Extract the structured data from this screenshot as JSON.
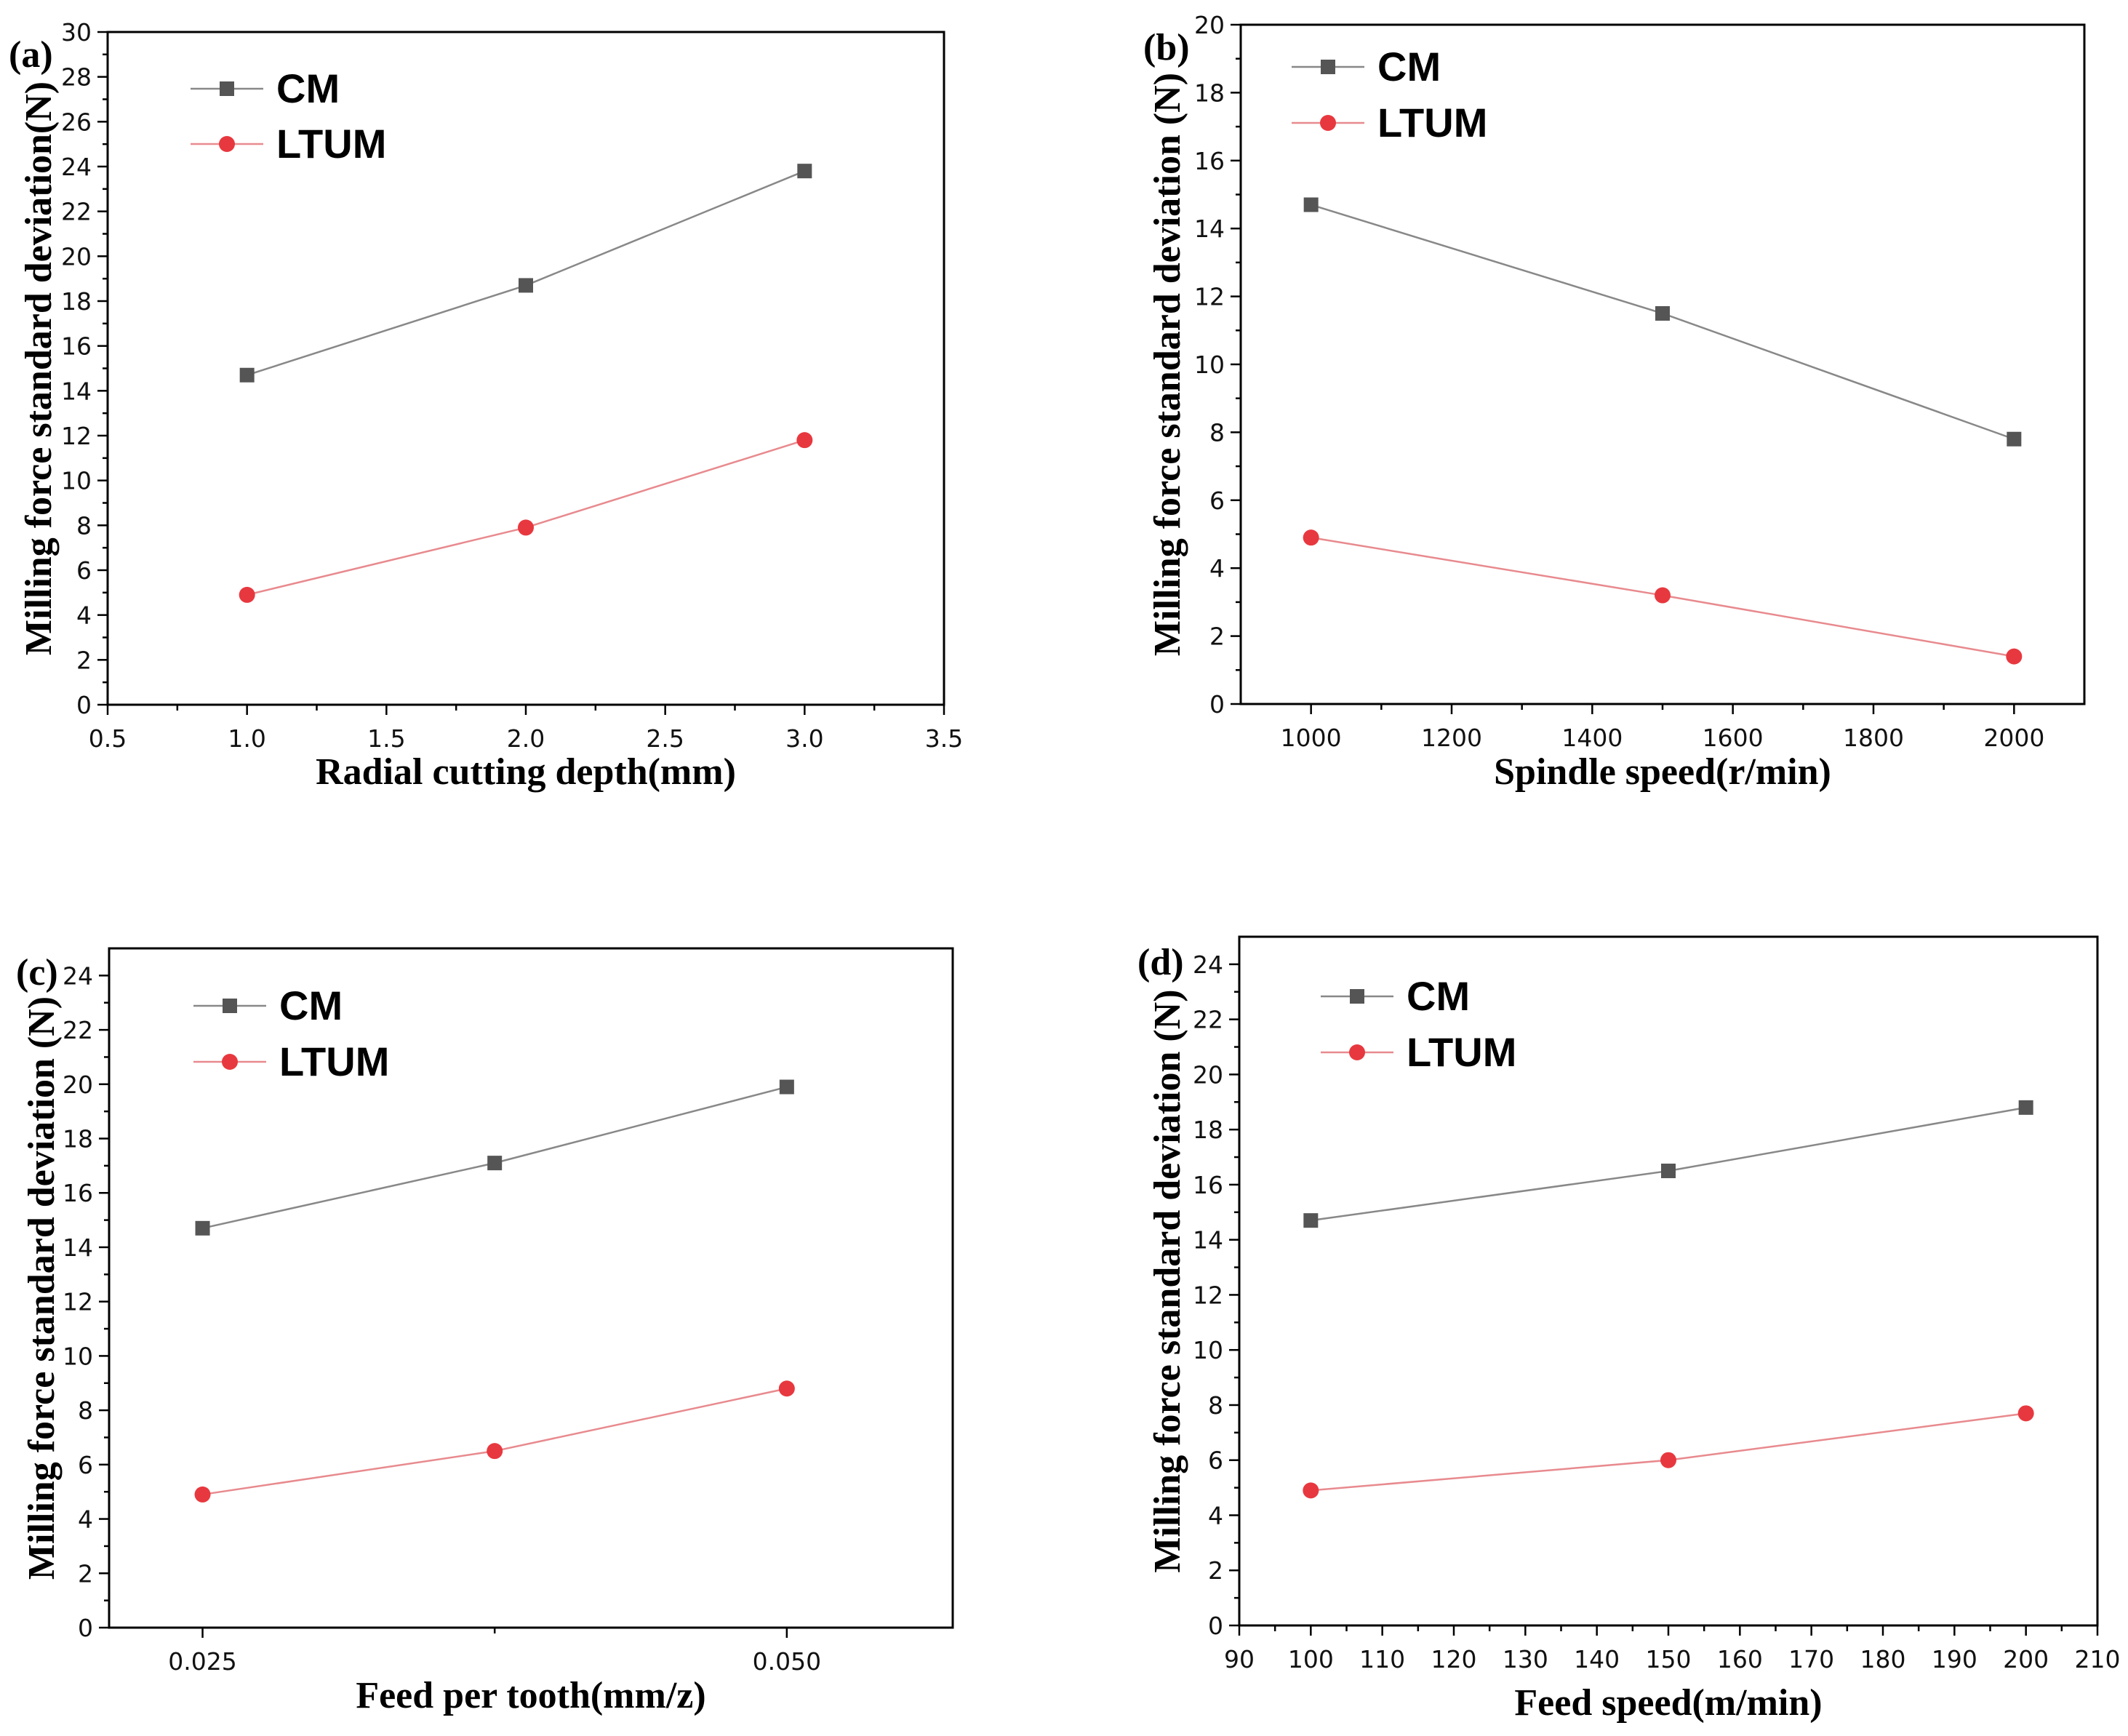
{
  "colors": {
    "cm": "#555555",
    "cm_line": "#888888",
    "ltum": "#e8383f",
    "ltum_line": "#e88a8e"
  },
  "chart_data": [
    {
      "type": "line",
      "panel_label": "(a)",
      "xlabel": "Radial cutting depth(mm)",
      "ylabel": "Milling force standard deviation(N)",
      "xlim": [
        0.5,
        3.5
      ],
      "ylim": [
        0,
        30
      ],
      "xticks": [
        0.5,
        1.0,
        1.5,
        2.0,
        2.5,
        3.0,
        3.5
      ],
      "xtick_labels": [
        "0.5",
        "1.0",
        "1.5",
        "2.0",
        "2.5",
        "3.0",
        "3.5"
      ],
      "yticks": [
        0,
        2,
        4,
        6,
        8,
        10,
        12,
        14,
        16,
        18,
        20,
        22,
        24,
        26,
        28,
        30
      ],
      "ytick_labels": [
        "0",
        "2",
        "4",
        "6",
        "8",
        "10",
        "12",
        "14",
        "16",
        "18",
        "20",
        "22",
        "24",
        "26",
        "28",
        "30"
      ],
      "x": [
        1.0,
        2.0,
        3.0
      ],
      "series": [
        {
          "name": "CM",
          "values": [
            14.7,
            18.7,
            23.8
          ]
        },
        {
          "name": "LTUM",
          "values": [
            4.9,
            7.9,
            11.8
          ]
        }
      ]
    },
    {
      "type": "line",
      "panel_label": "(b)",
      "xlabel": "Spindle speed(r/min)",
      "ylabel": "Milling force standard deviation (N)",
      "xlim": [
        900,
        2100
      ],
      "ylim": [
        0,
        20
      ],
      "xticks": [
        1000,
        1200,
        1400,
        1600,
        1800,
        2000
      ],
      "xtick_labels": [
        "1000",
        "1200",
        "1400",
        "1600",
        "1800",
        "2000"
      ],
      "yticks": [
        0,
        2,
        4,
        6,
        8,
        10,
        12,
        14,
        16,
        18,
        20
      ],
      "ytick_labels": [
        "0",
        "2",
        "4",
        "6",
        "8",
        "10",
        "12",
        "14",
        "16",
        "18",
        "20"
      ],
      "x": [
        1000,
        1500,
        2000
      ],
      "series": [
        {
          "name": "CM",
          "values": [
            14.7,
            11.5,
            7.8
          ]
        },
        {
          "name": "LTUM",
          "values": [
            4.9,
            3.2,
            1.4
          ]
        }
      ]
    },
    {
      "type": "line",
      "panel_label": "(c)",
      "xlabel": "Feed per tooth(mm/z)",
      "ylabel": "Milling force standard deviation (N)",
      "xlim": [
        0.021,
        0.0571
      ],
      "ylim": [
        0,
        25
      ],
      "xticks": [
        0.025,
        0.05
      ],
      "xtick_labels": [
        "0.025",
        "0.050"
      ],
      "yticks": [
        0,
        2,
        4,
        6,
        8,
        10,
        12,
        14,
        16,
        18,
        20,
        22,
        24
      ],
      "ytick_labels": [
        "0",
        "2",
        "4",
        "6",
        "8",
        "10",
        "12",
        "14",
        "16",
        "18",
        "20",
        "22",
        "24"
      ],
      "x": [
        0.025,
        0.0375,
        0.05
      ],
      "series": [
        {
          "name": "CM",
          "values": [
            14.7,
            17.1,
            19.9
          ]
        },
        {
          "name": "LTUM",
          "values": [
            4.9,
            6.5,
            8.8
          ]
        }
      ]
    },
    {
      "type": "line",
      "panel_label": "(d)",
      "xlabel": "Feed speed(m/min)",
      "ylabel": "Milling force standard deviation (N)",
      "xlim": [
        90,
        210
      ],
      "ylim": [
        0,
        25
      ],
      "xticks": [
        90,
        100,
        110,
        120,
        130,
        140,
        150,
        160,
        170,
        180,
        190,
        200,
        210
      ],
      "xtick_labels": [
        "90",
        "100",
        "110",
        "120",
        "130",
        "140",
        "150",
        "160",
        "170",
        "180",
        "190",
        "200",
        "210"
      ],
      "yticks": [
        0,
        2,
        4,
        6,
        8,
        10,
        12,
        14,
        16,
        18,
        20,
        22,
        24
      ],
      "ytick_labels": [
        "0",
        "2",
        "4",
        "6",
        "8",
        "10",
        "12",
        "14",
        "16",
        "18",
        "20",
        "22",
        "24"
      ],
      "x": [
        100,
        150,
        200
      ],
      "series": [
        {
          "name": "CM",
          "values": [
            14.7,
            16.5,
            18.8
          ]
        },
        {
          "name": "LTUM",
          "values": [
            4.9,
            6.0,
            7.7
          ]
        }
      ]
    }
  ]
}
